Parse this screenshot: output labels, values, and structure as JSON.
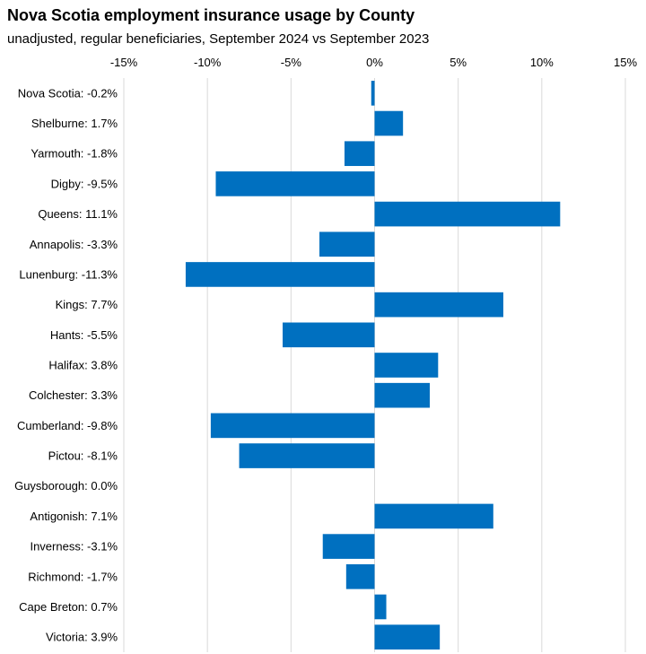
{
  "chart_data": {
    "type": "bar",
    "orientation": "horizontal",
    "title": "Nova Scotia employment insurance usage by County",
    "subtitle": "unadjusted, regular beneficiaries, September 2024 vs September 2023",
    "categories": [
      "Nova Scotia: -0.2%",
      "Shelburne: 1.7%",
      "Yarmouth: -1.8%",
      "Digby: -9.5%",
      "Queens: 11.1%",
      "Annapolis: -3.3%",
      "Lunenburg: -11.3%",
      "Kings: 7.7%",
      "Hants: -5.5%",
      "Halifax: 3.8%",
      "Colchester: 3.3%",
      "Cumberland: -9.8%",
      "Pictou: -8.1%",
      "Guysborough: 0.0%",
      "Antigonish: 7.1%",
      "Inverness: -3.1%",
      "Richmond: -1.7%",
      "Cape Breton: 0.7%",
      "Victoria: 3.9%"
    ],
    "values": [
      -0.2,
      1.7,
      -1.8,
      -9.5,
      11.1,
      -3.3,
      -11.3,
      7.7,
      -5.5,
      3.8,
      3.3,
      -9.8,
      -8.1,
      0.0,
      7.1,
      -3.1,
      -1.7,
      0.7,
      3.9
    ],
    "xlim": [
      -15,
      15
    ],
    "xticks": [
      -15,
      -10,
      -5,
      0,
      5,
      10,
      15
    ],
    "xtick_labels": [
      "-15%",
      "-10%",
      "-5%",
      "0%",
      "5%",
      "10%",
      "15%"
    ],
    "axis_position": "top",
    "grid": true,
    "bar_color": "#0070C0",
    "grid_color": "#d9d9d9"
  }
}
